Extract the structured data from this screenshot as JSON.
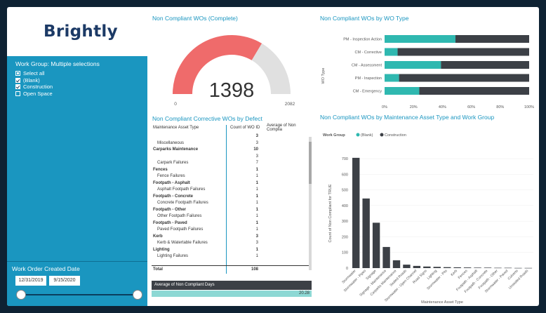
{
  "brand": {
    "logo_text": "Brightly"
  },
  "slicer": {
    "title": "Work Group: Multiple selections",
    "items": [
      {
        "label": "Select all",
        "state": "partial"
      },
      {
        "label": "(Blank)",
        "state": "checked"
      },
      {
        "label": "Construction",
        "state": "checked"
      },
      {
        "label": "Open Space",
        "state": "unchecked"
      }
    ]
  },
  "date_filter": {
    "title": "Work Order Created Date",
    "start": "12/31/2019",
    "end": "9/15/2020"
  },
  "gauge": {
    "title": "Non Compliant WOs (Complete)",
    "value_label": "1398",
    "min_label": "0",
    "max_label": "2082",
    "fraction": 0.6715,
    "fill_color": "#ef6b6b",
    "track_color": "#e0e0e0"
  },
  "wo_type_chart": {
    "title": "Non Compliant WOs by WO Type",
    "ylabel": "WO Type",
    "xlabel": "Count of Non Compliant WOs",
    "xticks": [
      "0%",
      "20%",
      "40%",
      "60%",
      "80%",
      "100%"
    ],
    "categories": [
      "PM - Inspection Action",
      "CM - Corrective",
      "CM - Assessment",
      "PM - Inspection",
      "CM - Emergency"
    ],
    "teal_share": [
      0.49,
      0.09,
      0.39,
      0.1,
      0.24
    ],
    "colors": {
      "teal": "#2fb8b0",
      "dark": "#3c4046"
    }
  },
  "defect_table": {
    "title": "Non Compliant Corrective WOs by Defect",
    "columns": [
      "Maintenance Asset Type",
      "Count of WO ID",
      "Average of Non Complia"
    ],
    "rows": [
      {
        "label": "",
        "count": "3",
        "bold": true,
        "indent": false
      },
      {
        "label": "Miscellaneous",
        "count": "3",
        "bold": false,
        "indent": true
      },
      {
        "label": "Carparks Maintenance",
        "count": "10",
        "bold": true,
        "indent": false
      },
      {
        "label": "",
        "count": "3",
        "bold": false,
        "indent": true
      },
      {
        "label": "Carpark Failures",
        "count": "7",
        "bold": false,
        "indent": true
      },
      {
        "label": "Fences",
        "count": "1",
        "bold": true,
        "indent": false
      },
      {
        "label": "Fence Failures",
        "count": "1",
        "bold": false,
        "indent": true
      },
      {
        "label": "Footpath - Asphalt",
        "count": "1",
        "bold": true,
        "indent": false
      },
      {
        "label": "Asphalt Footpath Failures",
        "count": "1",
        "bold": false,
        "indent": true
      },
      {
        "label": "Footpath - Concrete",
        "count": "1",
        "bold": true,
        "indent": false
      },
      {
        "label": "Concrete Footpath Failures",
        "count": "1",
        "bold": false,
        "indent": true
      },
      {
        "label": "Footpath - Other",
        "count": "1",
        "bold": true,
        "indent": false
      },
      {
        "label": "Other Footpath Failures",
        "count": "1",
        "bold": false,
        "indent": true
      },
      {
        "label": "Footpath - Paved",
        "count": "1",
        "bold": true,
        "indent": false
      },
      {
        "label": "Paved Footpath Failures",
        "count": "1",
        "bold": false,
        "indent": true
      },
      {
        "label": "Kerb",
        "count": "3",
        "bold": true,
        "indent": false
      },
      {
        "label": "Kerb & Watertable Failures",
        "count": "3",
        "bold": false,
        "indent": true
      },
      {
        "label": "Lighting",
        "count": "1",
        "bold": true,
        "indent": false
      },
      {
        "label": "Lighting Failures",
        "count": "1",
        "bold": false,
        "indent": true
      }
    ],
    "total_label": "Total",
    "total_count": "108"
  },
  "avg_card": {
    "title": "Average of Non Compliant Days",
    "value": "20.28",
    "fraction": 1.0
  },
  "asset_chart": {
    "title": "Non Compliant WOs by Maintenance Asset Type and Work Group",
    "legend_title": "Work Group",
    "legend": [
      "(Blank)",
      "Construction"
    ],
    "ylabel": "Count of Non Compliant for TRUE",
    "xlabel": "Maintenance Asset Type",
    "yticks": [
      "0",
      "100",
      "200",
      "300",
      "400",
      "500",
      "600",
      "700"
    ],
    "ymax": 700,
    "categories": [
      "Stormwater",
      "Stormwater - Pipes",
      "Signage",
      "Signage - Maintenance",
      "Carparks Maintenance",
      "Sealed Roads",
      "Stormwater - Open Channel",
      "Road Signs",
      "Lighting",
      "Stormwater - Pits",
      "Kerb",
      "Fences",
      "Footpath - Asphalt",
      "Footpath - Concrete",
      "Footpath - Other",
      "Stormwater - Paved",
      "Culverts",
      "Unsealed Roads"
    ],
    "values": [
      705,
      445,
      290,
      135,
      50,
      22,
      14,
      10,
      8,
      6,
      5,
      4,
      3,
      3,
      2,
      2,
      1,
      1
    ],
    "bar_color": "#3c4046"
  }
}
